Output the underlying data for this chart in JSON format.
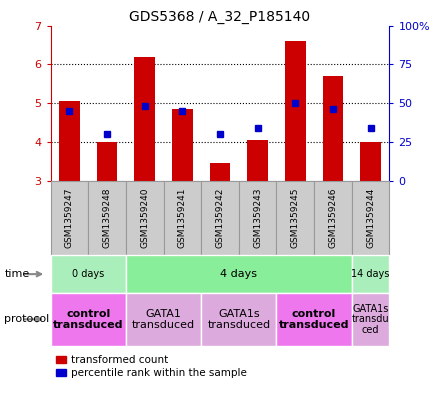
{
  "title": "GDS5368 / A_32_P185140",
  "samples": [
    "GSM1359247",
    "GSM1359248",
    "GSM1359240",
    "GSM1359241",
    "GSM1359242",
    "GSM1359243",
    "GSM1359245",
    "GSM1359246",
    "GSM1359244"
  ],
  "transformed_counts": [
    5.05,
    4.0,
    6.2,
    4.85,
    3.45,
    4.05,
    6.6,
    5.7,
    4.0
  ],
  "percentile_ranks": [
    45,
    30,
    48,
    45,
    30,
    34,
    50,
    46,
    34
  ],
  "ylim": [
    3,
    7
  ],
  "yticks": [
    3,
    4,
    5,
    6,
    7
  ],
  "right_ytick_labels": [
    "0",
    "25",
    "50",
    "75",
    "100%"
  ],
  "bar_color": "#cc0000",
  "dot_color": "#0000cc",
  "bar_bottom": 3.0,
  "time_groups": [
    {
      "label": "0 days",
      "start": 0,
      "end": 2,
      "color": "#aaeebb"
    },
    {
      "label": "4 days",
      "start": 2,
      "end": 8,
      "color": "#88ee99"
    },
    {
      "label": "14 days",
      "start": 8,
      "end": 9,
      "color": "#aaeebb"
    }
  ],
  "protocol_groups": [
    {
      "label": "control\ntransduced",
      "start": 0,
      "end": 2,
      "color": "#ee77ee",
      "bold": true
    },
    {
      "label": "GATA1\ntransduced",
      "start": 2,
      "end": 4,
      "color": "#ddaadd",
      "bold": false
    },
    {
      "label": "GATA1s\ntransduced",
      "start": 4,
      "end": 6,
      "color": "#ddaadd",
      "bold": false
    },
    {
      "label": "control\ntransduced",
      "start": 6,
      "end": 8,
      "color": "#ee77ee",
      "bold": true
    },
    {
      "label": "GATA1s\ntransdu\nced",
      "start": 8,
      "end": 9,
      "color": "#ddaadd",
      "bold": false
    }
  ],
  "legend_red": "transformed count",
  "legend_blue": "percentile rank within the sample",
  "left_yaxis_color": "#cc0000",
  "right_yaxis_color": "#0000cc",
  "sample_bg": "#cccccc",
  "sample_edge": "#999999"
}
